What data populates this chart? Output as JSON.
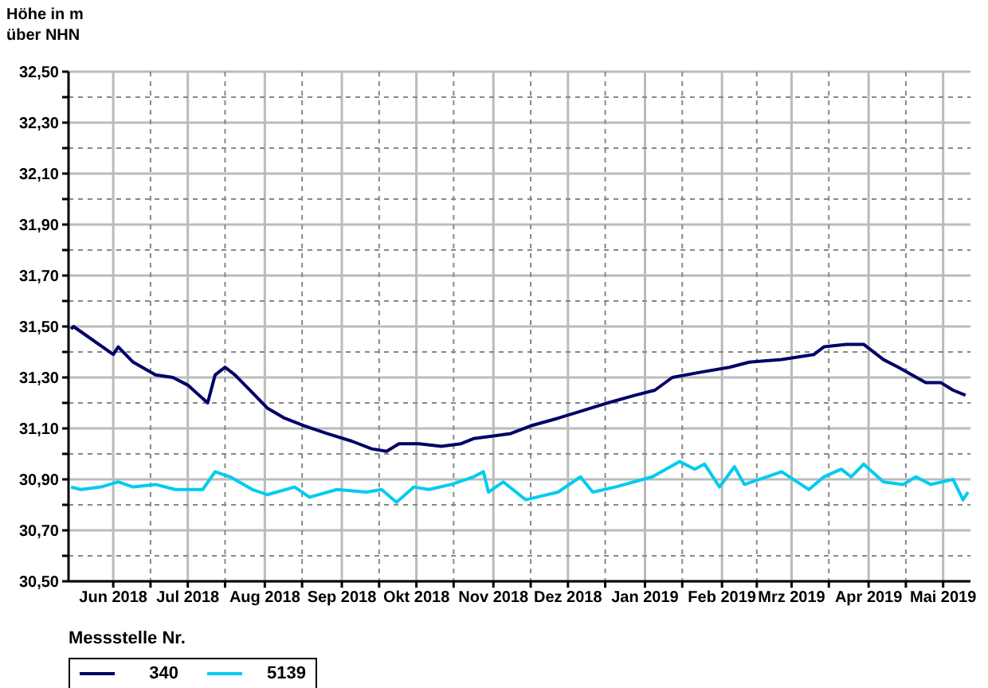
{
  "chart_data": {
    "type": "line",
    "ylabel": "Höhe in m\nüber NHN",
    "legend_title": "Messstelle Nr.",
    "legend": "bottom left",
    "grid": true,
    "line_style": "solid",
    "marker": "none",
    "xlim": [
      "2018-05-14",
      "2019-05-12"
    ],
    "xticks": [
      {
        "value": "2018-06-01",
        "label": "Jun 2018"
      },
      {
        "value": "2018-06-16",
        "label": null
      },
      {
        "value": "2018-07-01",
        "label": "Jul 2018"
      },
      {
        "value": "2018-07-16",
        "label": null
      },
      {
        "value": "2018-08-01",
        "label": "Aug 2018"
      },
      {
        "value": "2018-08-16",
        "label": null
      },
      {
        "value": "2018-09-01",
        "label": "Sep 2018"
      },
      {
        "value": "2018-09-16",
        "label": null
      },
      {
        "value": "2018-10-01",
        "label": "Okt 2018"
      },
      {
        "value": "2018-10-16",
        "label": null
      },
      {
        "value": "2018-11-01",
        "label": "Nov 2018"
      },
      {
        "value": "2018-11-16",
        "label": null
      },
      {
        "value": "2018-12-01",
        "label": "Dez 2018"
      },
      {
        "value": "2018-12-16",
        "label": null
      },
      {
        "value": "2019-01-01",
        "label": "Jan 2019"
      },
      {
        "value": "2019-01-16",
        "label": null
      },
      {
        "value": "2019-02-01",
        "label": "Feb 2019"
      },
      {
        "value": "2019-02-15",
        "label": null
      },
      {
        "value": "2019-03-01",
        "label": "Mrz 2019"
      },
      {
        "value": "2019-03-16",
        "label": null
      },
      {
        "value": "2019-04-01",
        "label": "Apr 2019"
      },
      {
        "value": "2019-04-16",
        "label": null
      },
      {
        "value": "2019-05-01",
        "label": "Mai 2019"
      }
    ],
    "ylim": [
      30.5,
      32.5
    ],
    "yticks": [
      {
        "value": 30.5,
        "label": "30,50"
      },
      {
        "value": 30.6,
        "label": null
      },
      {
        "value": 30.7,
        "label": "30,70"
      },
      {
        "value": 30.8,
        "label": null
      },
      {
        "value": 30.9,
        "label": "30,90"
      },
      {
        "value": 31.0,
        "label": null
      },
      {
        "value": 31.1,
        "label": "31,10"
      },
      {
        "value": 31.2,
        "label": null
      },
      {
        "value": 31.3,
        "label": "31,30"
      },
      {
        "value": 31.4,
        "label": null
      },
      {
        "value": 31.5,
        "label": "31,50"
      },
      {
        "value": 31.6,
        "label": null
      },
      {
        "value": 31.7,
        "label": "31,70"
      },
      {
        "value": 31.8,
        "label": null
      },
      {
        "value": 31.9,
        "label": "31,90"
      },
      {
        "value": 32.0,
        "label": null
      },
      {
        "value": 32.1,
        "label": "32,10"
      },
      {
        "value": 32.2,
        "label": null
      },
      {
        "value": 32.3,
        "label": "32,30"
      },
      {
        "value": 32.4,
        "label": null
      },
      {
        "value": 32.5,
        "label": "32,50"
      }
    ],
    "series": [
      {
        "name": "340",
        "color": "#000066",
        "x": [
          "2018-05-15",
          "2018-05-16",
          "2018-06-01",
          "2018-06-03",
          "2018-06-09",
          "2018-06-18",
          "2018-06-25",
          "2018-07-01",
          "2018-07-09",
          "2018-07-12",
          "2018-07-16",
          "2018-07-20",
          "2018-07-27",
          "2018-08-02",
          "2018-08-09",
          "2018-08-17",
          "2018-08-26",
          "2018-09-05",
          "2018-09-13",
          "2018-09-19",
          "2018-09-24",
          "2018-10-02",
          "2018-10-11",
          "2018-10-19",
          "2018-10-24",
          "2018-11-01",
          "2018-11-08",
          "2018-11-16",
          "2018-11-27",
          "2018-12-07",
          "2018-12-17",
          "2018-12-28",
          "2019-01-05",
          "2019-01-12",
          "2019-01-23",
          "2019-02-04",
          "2019-02-12",
          "2019-02-25",
          "2019-03-10",
          "2019-03-14",
          "2019-03-23",
          "2019-03-30",
          "2019-04-07",
          "2019-04-13",
          "2019-04-24",
          "2019-04-30",
          "2019-05-05",
          "2019-05-10"
        ],
        "values": [
          31.49,
          31.5,
          31.39,
          31.42,
          31.36,
          31.31,
          31.3,
          31.27,
          31.2,
          31.31,
          31.34,
          31.31,
          31.24,
          31.18,
          31.14,
          31.11,
          31.08,
          31.05,
          31.02,
          31.01,
          31.04,
          31.04,
          31.03,
          31.04,
          31.06,
          31.07,
          31.08,
          31.11,
          31.14,
          31.17,
          31.2,
          31.23,
          31.25,
          31.3,
          31.32,
          31.34,
          31.36,
          31.37,
          31.39,
          31.42,
          31.43,
          31.43,
          31.37,
          31.34,
          31.28,
          31.28,
          31.25,
          31.23
        ]
      },
      {
        "name": "5139",
        "color": "#00ccee",
        "x": [
          "2018-05-15",
          "2018-05-19",
          "2018-05-27",
          "2018-06-03",
          "2018-06-09",
          "2018-06-18",
          "2018-06-26",
          "2018-07-07",
          "2018-07-12",
          "2018-07-18",
          "2018-07-27",
          "2018-08-02",
          "2018-08-13",
          "2018-08-19",
          "2018-08-30",
          "2018-09-11",
          "2018-09-17",
          "2018-09-23",
          "2018-09-30",
          "2018-10-06",
          "2018-10-15",
          "2018-10-24",
          "2018-10-28",
          "2018-10-30",
          "2018-11-05",
          "2018-11-14",
          "2018-11-27",
          "2018-12-06",
          "2018-12-11",
          "2018-12-20",
          "2019-01-04",
          "2019-01-15",
          "2019-01-21",
          "2019-01-25",
          "2019-01-31",
          "2019-02-06",
          "2019-02-10",
          "2019-02-19",
          "2019-02-25",
          "2019-03-08",
          "2019-03-14",
          "2019-03-21",
          "2019-03-25",
          "2019-03-30",
          "2019-04-07",
          "2019-04-15",
          "2019-04-20",
          "2019-04-26",
          "2019-05-05",
          "2019-05-09",
          "2019-05-11"
        ],
        "values": [
          30.87,
          30.86,
          30.87,
          30.89,
          30.87,
          30.88,
          30.86,
          30.86,
          30.93,
          30.91,
          30.86,
          30.84,
          30.87,
          30.83,
          30.86,
          30.85,
          30.86,
          30.81,
          30.87,
          30.86,
          30.88,
          30.91,
          30.93,
          30.85,
          30.89,
          30.82,
          30.85,
          30.91,
          30.85,
          30.87,
          30.91,
          30.97,
          30.94,
          30.96,
          30.87,
          30.95,
          30.88,
          30.91,
          30.93,
          30.86,
          30.91,
          30.94,
          30.91,
          30.96,
          30.89,
          30.88,
          30.91,
          30.88,
          30.9,
          30.82,
          30.85
        ]
      }
    ]
  }
}
